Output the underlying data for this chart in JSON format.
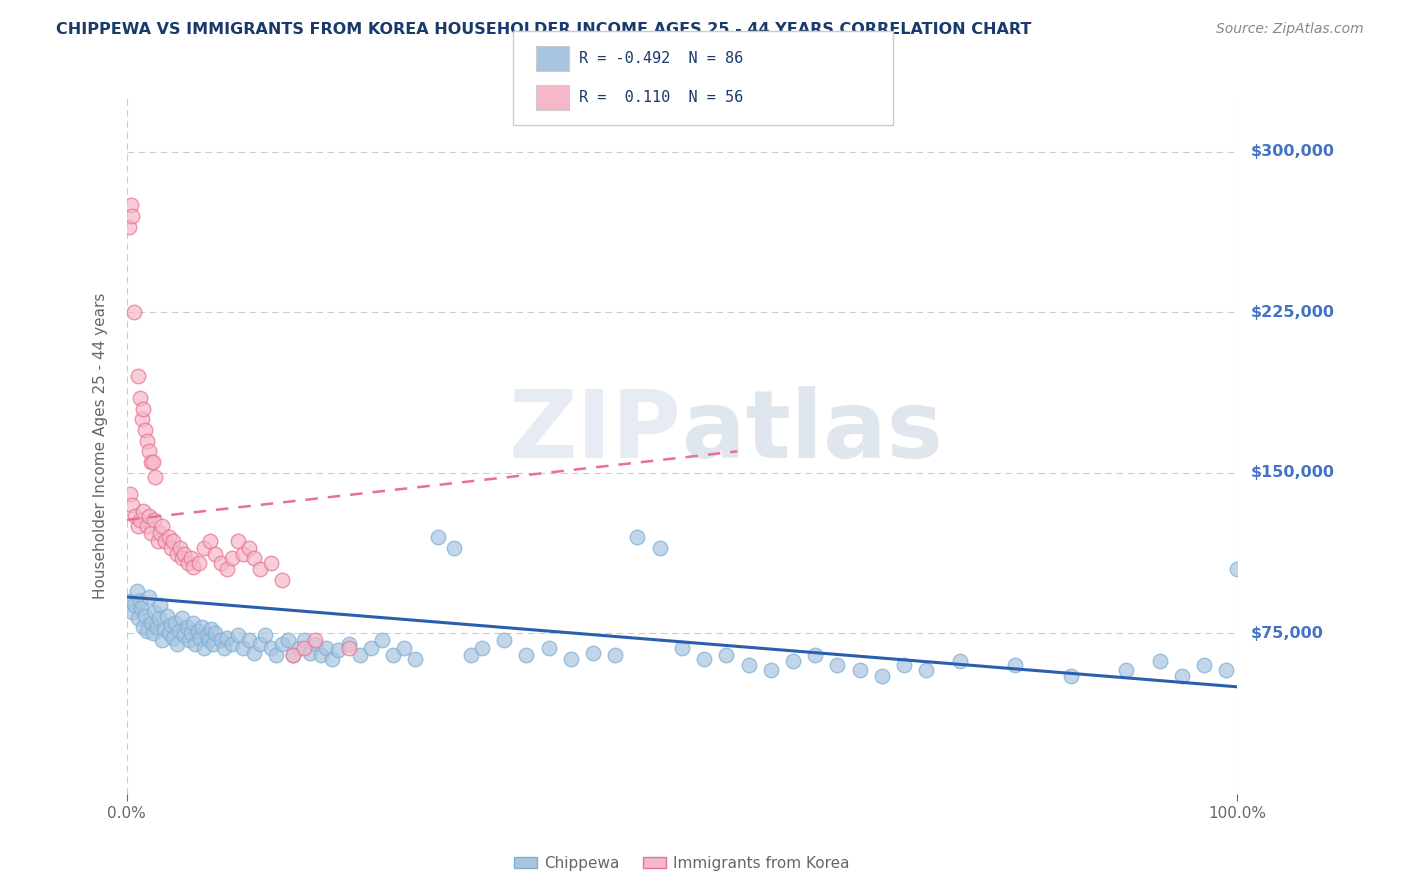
{
  "title": "CHIPPEWA VS IMMIGRANTS FROM KOREA HOUSEHOLDER INCOME AGES 25 - 44 YEARS CORRELATION CHART",
  "source": "Source: ZipAtlas.com",
  "ylabel": "Householder Income Ages 25 - 44 years",
  "xmin": 0.0,
  "xmax": 1.0,
  "ymin": 0,
  "ymax": 325000,
  "yticks": [
    75000,
    150000,
    225000,
    300000
  ],
  "ytick_labels": [
    "$75,000",
    "$150,000",
    "$225,000",
    "$300,000"
  ],
  "xtick_labels": [
    "0.0%",
    "100.0%"
  ],
  "title_color": "#1a3a6b",
  "source_color": "#888888",
  "ylabel_color": "#666666",
  "ytick_color": "#4472c4",
  "xtick_color": "#666666",
  "grid_color": "#cccccc",
  "background_color": "#ffffff",
  "chippewa_color": "#a8c4e0",
  "chippewa_edge_color": "#7bafd4",
  "chippewa_line_color": "#2b5fad",
  "korea_color": "#f4b8c8",
  "korea_edge_color": "#e87090",
  "korea_line_color": "#e87090",
  "watermark": "ZIPatlas",
  "chippewa_line_x0": 0.0,
  "chippewa_line_y0": 92000,
  "chippewa_line_x1": 1.0,
  "chippewa_line_y1": 50000,
  "korea_line_x0": 0.0,
  "korea_line_y0": 128000,
  "korea_line_x1": 0.55,
  "korea_line_y1": 160000,
  "chippewa_scatter": [
    [
      0.003,
      90000
    ],
    [
      0.005,
      85000
    ],
    [
      0.007,
      88000
    ],
    [
      0.009,
      95000
    ],
    [
      0.01,
      82000
    ],
    [
      0.012,
      90000
    ],
    [
      0.013,
      87000
    ],
    [
      0.015,
      78000
    ],
    [
      0.017,
      83000
    ],
    [
      0.018,
      76000
    ],
    [
      0.02,
      92000
    ],
    [
      0.022,
      80000
    ],
    [
      0.024,
      75000
    ],
    [
      0.025,
      85000
    ],
    [
      0.027,
      78000
    ],
    [
      0.029,
      82000
    ],
    [
      0.03,
      88000
    ],
    [
      0.032,
      72000
    ],
    [
      0.034,
      77000
    ],
    [
      0.036,
      83000
    ],
    [
      0.038,
      75000
    ],
    [
      0.04,
      79000
    ],
    [
      0.042,
      73000
    ],
    [
      0.044,
      80000
    ],
    [
      0.045,
      70000
    ],
    [
      0.047,
      76000
    ],
    [
      0.05,
      82000
    ],
    [
      0.052,
      74000
    ],
    [
      0.054,
      78000
    ],
    [
      0.056,
      72000
    ],
    [
      0.058,
      75000
    ],
    [
      0.06,
      80000
    ],
    [
      0.062,
      70000
    ],
    [
      0.064,
      76000
    ],
    [
      0.066,
      73000
    ],
    [
      0.068,
      78000
    ],
    [
      0.07,
      68000
    ],
    [
      0.072,
      74000
    ],
    [
      0.074,
      72000
    ],
    [
      0.076,
      77000
    ],
    [
      0.078,
      70000
    ],
    [
      0.08,
      75000
    ],
    [
      0.085,
      72000
    ],
    [
      0.088,
      68000
    ],
    [
      0.09,
      73000
    ],
    [
      0.095,
      70000
    ],
    [
      0.1,
      74000
    ],
    [
      0.105,
      68000
    ],
    [
      0.11,
      72000
    ],
    [
      0.115,
      66000
    ],
    [
      0.12,
      70000
    ],
    [
      0.125,
      74000
    ],
    [
      0.13,
      68000
    ],
    [
      0.135,
      65000
    ],
    [
      0.14,
      70000
    ],
    [
      0.145,
      72000
    ],
    [
      0.15,
      65000
    ],
    [
      0.155,
      68000
    ],
    [
      0.16,
      72000
    ],
    [
      0.165,
      66000
    ],
    [
      0.17,
      70000
    ],
    [
      0.175,
      65000
    ],
    [
      0.18,
      68000
    ],
    [
      0.185,
      63000
    ],
    [
      0.19,
      67000
    ],
    [
      0.2,
      70000
    ],
    [
      0.21,
      65000
    ],
    [
      0.22,
      68000
    ],
    [
      0.23,
      72000
    ],
    [
      0.24,
      65000
    ],
    [
      0.25,
      68000
    ],
    [
      0.26,
      63000
    ],
    [
      0.28,
      120000
    ],
    [
      0.295,
      115000
    ],
    [
      0.31,
      65000
    ],
    [
      0.32,
      68000
    ],
    [
      0.34,
      72000
    ],
    [
      0.36,
      65000
    ],
    [
      0.38,
      68000
    ],
    [
      0.4,
      63000
    ],
    [
      0.42,
      66000
    ],
    [
      0.44,
      65000
    ],
    [
      0.46,
      120000
    ],
    [
      0.48,
      115000
    ],
    [
      0.5,
      68000
    ],
    [
      0.52,
      63000
    ],
    [
      0.54,
      65000
    ],
    [
      0.56,
      60000
    ],
    [
      0.58,
      58000
    ],
    [
      0.6,
      62000
    ],
    [
      0.62,
      65000
    ],
    [
      0.64,
      60000
    ],
    [
      0.66,
      58000
    ],
    [
      0.68,
      55000
    ],
    [
      0.7,
      60000
    ],
    [
      0.72,
      58000
    ],
    [
      0.75,
      62000
    ],
    [
      0.8,
      60000
    ],
    [
      0.85,
      55000
    ],
    [
      0.9,
      58000
    ],
    [
      0.93,
      62000
    ],
    [
      0.95,
      55000
    ],
    [
      0.97,
      60000
    ],
    [
      0.99,
      58000
    ],
    [
      1.0,
      105000
    ]
  ],
  "korea_scatter": [
    [
      0.002,
      265000
    ],
    [
      0.004,
      275000
    ],
    [
      0.005,
      270000
    ],
    [
      0.007,
      225000
    ],
    [
      0.01,
      195000
    ],
    [
      0.012,
      185000
    ],
    [
      0.014,
      175000
    ],
    [
      0.015,
      180000
    ],
    [
      0.017,
      170000
    ],
    [
      0.018,
      165000
    ],
    [
      0.02,
      160000
    ],
    [
      0.022,
      155000
    ],
    [
      0.024,
      155000
    ],
    [
      0.026,
      148000
    ],
    [
      0.003,
      140000
    ],
    [
      0.005,
      135000
    ],
    [
      0.008,
      130000
    ],
    [
      0.01,
      125000
    ],
    [
      0.012,
      128000
    ],
    [
      0.015,
      132000
    ],
    [
      0.018,
      125000
    ],
    [
      0.02,
      130000
    ],
    [
      0.022,
      122000
    ],
    [
      0.025,
      128000
    ],
    [
      0.028,
      118000
    ],
    [
      0.03,
      122000
    ],
    [
      0.032,
      125000
    ],
    [
      0.035,
      118000
    ],
    [
      0.038,
      120000
    ],
    [
      0.04,
      115000
    ],
    [
      0.042,
      118000
    ],
    [
      0.045,
      112000
    ],
    [
      0.048,
      115000
    ],
    [
      0.05,
      110000
    ],
    [
      0.052,
      112000
    ],
    [
      0.055,
      108000
    ],
    [
      0.058,
      110000
    ],
    [
      0.06,
      106000
    ],
    [
      0.065,
      108000
    ],
    [
      0.07,
      115000
    ],
    [
      0.075,
      118000
    ],
    [
      0.08,
      112000
    ],
    [
      0.085,
      108000
    ],
    [
      0.09,
      105000
    ],
    [
      0.095,
      110000
    ],
    [
      0.1,
      118000
    ],
    [
      0.105,
      112000
    ],
    [
      0.11,
      115000
    ],
    [
      0.115,
      110000
    ],
    [
      0.12,
      105000
    ],
    [
      0.13,
      108000
    ],
    [
      0.14,
      100000
    ],
    [
      0.15,
      65000
    ],
    [
      0.16,
      68000
    ],
    [
      0.17,
      72000
    ],
    [
      0.2,
      68000
    ]
  ]
}
